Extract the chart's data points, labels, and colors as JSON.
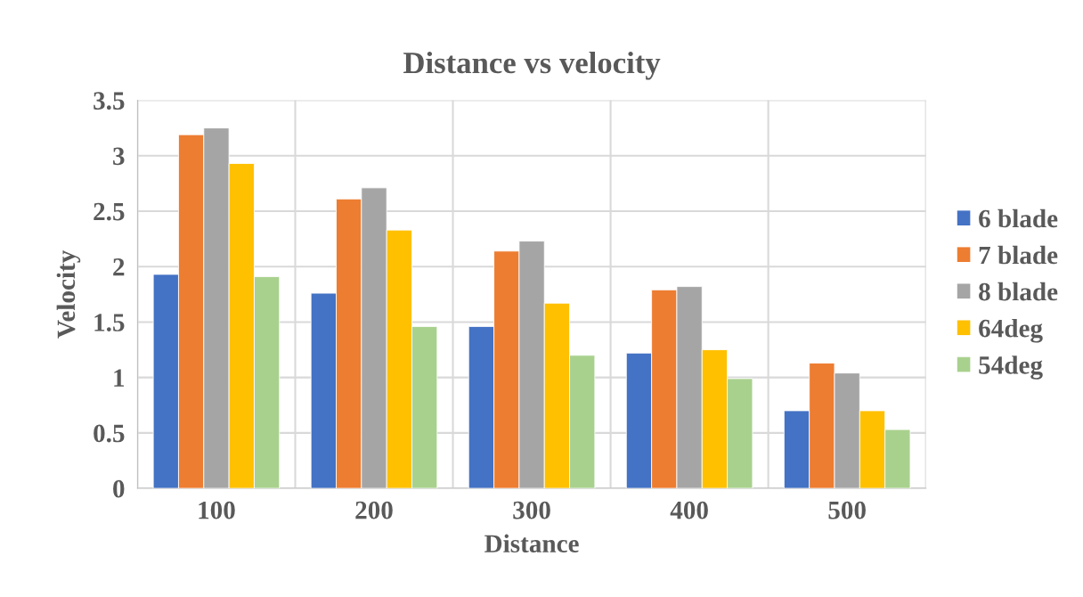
{
  "chart_data": {
    "type": "bar",
    "title": "Distance vs velocity",
    "xlabel": "Distance",
    "ylabel": "Velocity",
    "categories": [
      "100",
      "200",
      "300",
      "400",
      "500"
    ],
    "series": [
      {
        "name": "6 blade",
        "color": "#4472c4",
        "values": [
          1.93,
          1.76,
          1.46,
          1.22,
          0.7
        ]
      },
      {
        "name": "7 blade",
        "color": "#ed7d31",
        "values": [
          3.19,
          2.61,
          2.14,
          1.79,
          1.13
        ]
      },
      {
        "name": "8 blade",
        "color": "#a5a5a5",
        "values": [
          3.25,
          2.71,
          2.23,
          1.82,
          1.04
        ]
      },
      {
        "name": "64deg",
        "color": "#ffc000",
        "values": [
          2.93,
          2.33,
          1.67,
          1.25,
          0.7
        ]
      },
      {
        "name": "54deg",
        "color": "#a9d18e",
        "values": [
          1.91,
          1.46,
          1.2,
          0.99,
          0.53
        ]
      }
    ],
    "ylim": [
      0,
      3.5
    ],
    "yticks": [
      0,
      {
        "value": 0.5,
        "label": "0.5"
      },
      1,
      {
        "value": 1.5,
        "label": "1.5"
      },
      2,
      {
        "value": 2.5,
        "label": "2.5"
      },
      3,
      {
        "value": 3.5,
        "label": "3.5"
      }
    ],
    "grid": true,
    "legend": "right"
  }
}
